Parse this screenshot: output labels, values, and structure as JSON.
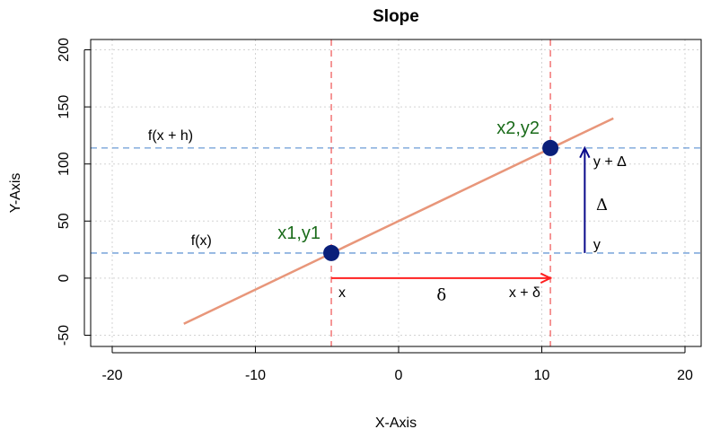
{
  "chart_data": {
    "type": "line",
    "title": "Slope",
    "xlabel": "X-Axis",
    "ylabel": "Y-Axis",
    "xlim": [
      -20,
      20
    ],
    "ylim": [
      -50,
      200
    ],
    "x_ticks": [
      -20,
      -10,
      0,
      10,
      20
    ],
    "y_ticks": [
      -50,
      0,
      50,
      100,
      150,
      200
    ],
    "grid": true,
    "series": [
      {
        "x": [
          -15,
          15
        ],
        "y": [
          -40,
          140
        ],
        "color": "#e8967a"
      }
    ],
    "points": [
      {
        "x": -4.7,
        "y": 22,
        "label": "x1,y1",
        "color": "#0a1f7a"
      },
      {
        "x": 10.6,
        "y": 114,
        "label": "x2,y2",
        "color": "#0a1f7a"
      }
    ],
    "h_reference_lines": [
      {
        "y": 22,
        "label": "f(x)",
        "label_x": -14.5,
        "color": "#6b9bd6"
      },
      {
        "y": 114,
        "label": "f(x + h)",
        "label_x": -17.5,
        "color": "#6b9bd6"
      }
    ],
    "v_reference_lines": [
      {
        "x": -4.7,
        "color": "#f06060"
      },
      {
        "x": 10.6,
        "color": "#f06060"
      }
    ],
    "arrows": [
      {
        "from": [
          -4.7,
          0
        ],
        "to": [
          10.6,
          0
        ],
        "color": "#ff2020",
        "label": "δ",
        "label_at": [
          3,
          -14
        ]
      },
      {
        "from": [
          13,
          22
        ],
        "to": [
          13,
          114
        ],
        "color": "#0a0a8a",
        "label": "Δ",
        "label_at": [
          14.2,
          65
        ]
      }
    ],
    "annotations": [
      {
        "text": "x",
        "x": -4.2,
        "y": -12,
        "anchor": "start"
      },
      {
        "text": "x + δ",
        "x": 7.7,
        "y": -12,
        "anchor": "start"
      },
      {
        "text": "y",
        "x": 13.6,
        "y": 30,
        "anchor": "start"
      },
      {
        "text": "y + Δ",
        "x": 13.6,
        "y": 103,
        "anchor": "start"
      }
    ]
  }
}
